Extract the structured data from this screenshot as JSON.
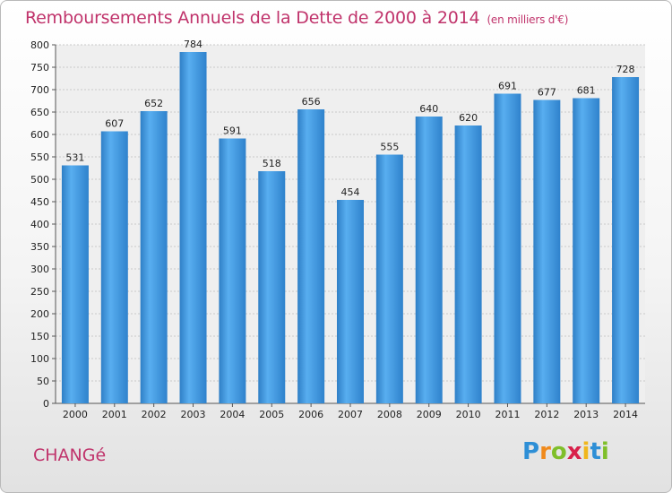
{
  "title": "Remboursements Annuels de la Dette de 2000 à 2014",
  "subtitle": "(en milliers d'€)",
  "commune": "CHANGé",
  "logo": {
    "text": "Proxiti",
    "colors": [
      "#2e8fd6",
      "#f08a1c",
      "#7fbf2a",
      "#d8204a",
      "#f0b61c",
      "#2e8fd6",
      "#7fbf2a"
    ]
  },
  "chart_data": {
    "type": "bar",
    "categories": [
      "2000",
      "2001",
      "2002",
      "2003",
      "2004",
      "2005",
      "2006",
      "2007",
      "2008",
      "2009",
      "2010",
      "2011",
      "2012",
      "2013",
      "2014"
    ],
    "values": [
      531,
      607,
      652,
      784,
      591,
      518,
      656,
      454,
      555,
      640,
      620,
      691,
      677,
      681,
      728
    ],
    "title": "Remboursements Annuels de la Dette de 2000 à 2014",
    "xlabel": "",
    "ylabel": "",
    "ylim": [
      0,
      800
    ],
    "yticks": [
      0,
      50,
      100,
      150,
      200,
      250,
      300,
      350,
      400,
      450,
      500,
      550,
      600,
      650,
      700,
      750,
      800
    ],
    "grid": true,
    "bar_color": "#3b8fd6"
  }
}
